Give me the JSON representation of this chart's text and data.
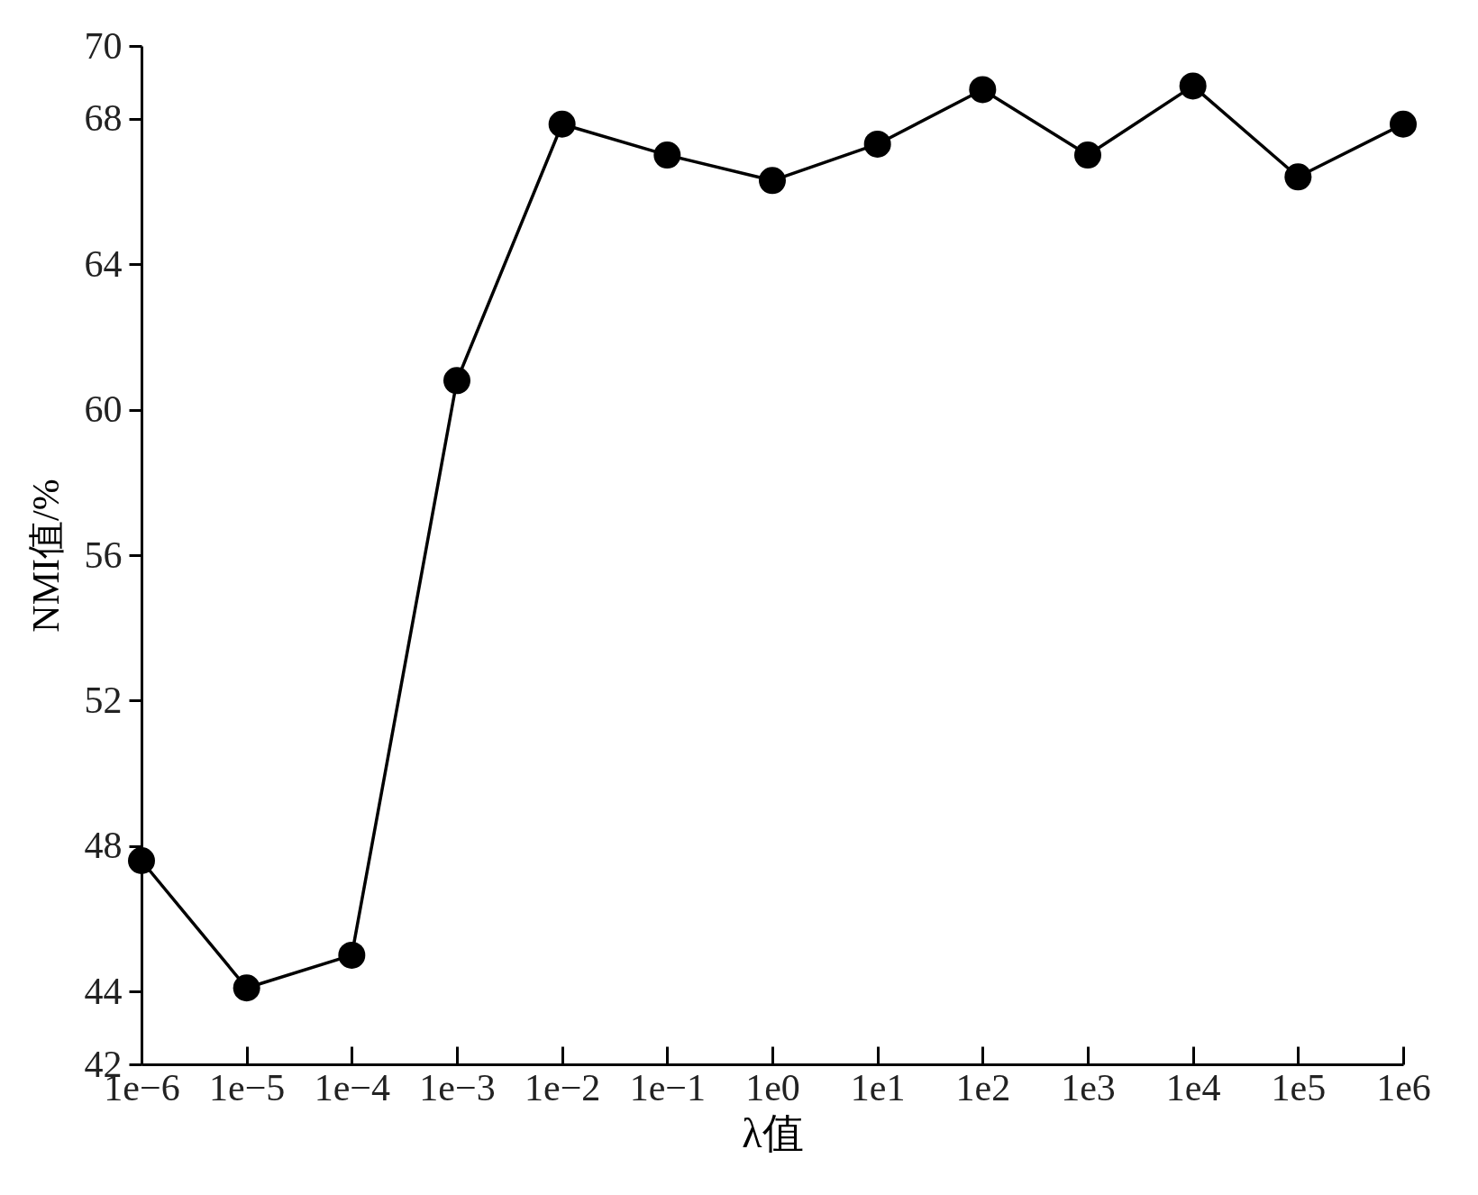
{
  "chart_data": {
    "type": "line",
    "xlabel": "λ值",
    "ylabel": "NMI值/%",
    "categories": [
      "1e−6",
      "1e−5",
      "1e−4",
      "1e−3",
      "1e−2",
      "1e−1",
      "1e0",
      "1e1",
      "1e2",
      "1e3",
      "1e4",
      "1e5",
      "1e6"
    ],
    "series": [
      {
        "color": "#000000",
        "values": [
          47.6,
          44.1,
          45.0,
          60.8,
          67.85,
          67.0,
          66.3,
          67.3,
          68.8,
          67.0,
          68.9,
          66.4,
          67.85
        ]
      }
    ],
    "ylim": [
      42,
      70
    ],
    "yticks": [
      42,
      44,
      48,
      52,
      56,
      60,
      64,
      68,
      70
    ],
    "grid": false,
    "legend": false,
    "marker": "circle",
    "line_style": "solid"
  }
}
